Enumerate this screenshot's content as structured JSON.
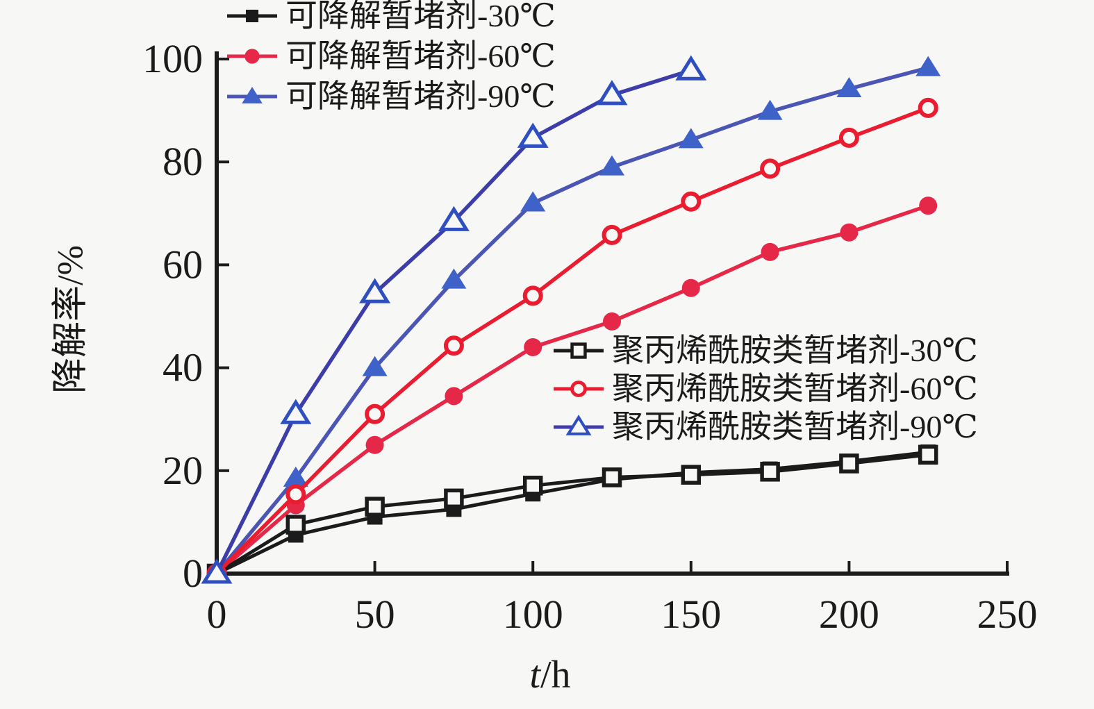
{
  "figure": {
    "background": "#f7f7f5",
    "text_color": "#1b1b1b",
    "axis_color": "#1b1b1b"
  },
  "chart_data": {
    "type": "line",
    "title": "",
    "xlabel": "t/h",
    "xlabel_var": "t",
    "xlabel_rest": "/h",
    "ylabel": "降解率/%",
    "xlim": [
      0,
      250
    ],
    "ylim": [
      0,
      100
    ],
    "xticks": [
      0,
      50,
      100,
      150,
      200,
      250
    ],
    "yticks": [
      0,
      20,
      40,
      60,
      80,
      100
    ],
    "grid": false,
    "legend_positions": [
      "inside top-left",
      "inside center-right"
    ],
    "series": [
      {
        "name": "可降解暂堵剂-30℃",
        "temperature": "30℃",
        "marker": "square-filled",
        "color": "#1b1b1b",
        "x": [
          0,
          25,
          50,
          75,
          100,
          125,
          150,
          175,
          200,
          225
        ],
        "y": [
          0,
          7.5,
          11,
          12.5,
          15.5,
          18.3,
          19.6,
          20.3,
          21.8,
          23.6
        ]
      },
      {
        "name": "可降解暂堵剂-60℃",
        "temperature": "60℃",
        "marker": "circle-filled",
        "color": "#e62848",
        "x": [
          0,
          25,
          50,
          75,
          100,
          125,
          150,
          175,
          200,
          225
        ],
        "y": [
          0,
          13.3,
          25,
          34.5,
          44,
          49,
          55.5,
          62.5,
          66.3,
          71.5
        ]
      },
      {
        "name": "可降解暂堵剂-90℃",
        "temperature": "90℃",
        "marker": "triangle-filled",
        "color": "#3f62c9",
        "line_color": "#4a55b4",
        "x": [
          0,
          25,
          50,
          75,
          100,
          125,
          150,
          175,
          200,
          225
        ],
        "y": [
          0,
          18.5,
          40,
          57,
          72,
          79,
          84.3,
          89.8,
          94.2,
          98.3
        ]
      },
      {
        "name": "聚丙烯酰胺类暂堵剂-30℃",
        "temperature": "30℃",
        "marker": "square-open",
        "color": "#1b1b1b",
        "x": [
          0,
          25,
          50,
          75,
          100,
          125,
          150,
          175,
          200,
          225
        ],
        "y": [
          0,
          9.5,
          13,
          14.6,
          17.1,
          18.7,
          19.2,
          19.8,
          21.4,
          23.1
        ]
      },
      {
        "name": "聚丙烯酰胺类暂堵剂-60℃",
        "temperature": "60℃",
        "marker": "circle-open",
        "color": "#ea1c30",
        "x": [
          0,
          25,
          50,
          75,
          100,
          125,
          150,
          175,
          200,
          225
        ],
        "y": [
          0,
          15.4,
          31,
          44.3,
          54,
          65.8,
          72.3,
          78.7,
          84.7,
          90.5
        ]
      },
      {
        "name": "聚丙烯酰胺类暂堵剂-90℃",
        "temperature": "90℃",
        "marker": "triangle-open",
        "color": "#3c3da8",
        "marker_color": "#2f4fc0",
        "x": [
          0,
          25,
          50,
          75,
          100,
          125,
          150
        ],
        "y": [
          0,
          31,
          54.5,
          68.5,
          84.7,
          93,
          97.8
        ]
      }
    ],
    "legends": [
      {
        "series": [
          0,
          1,
          2
        ]
      },
      {
        "series": [
          3,
          4,
          5
        ]
      }
    ]
  }
}
